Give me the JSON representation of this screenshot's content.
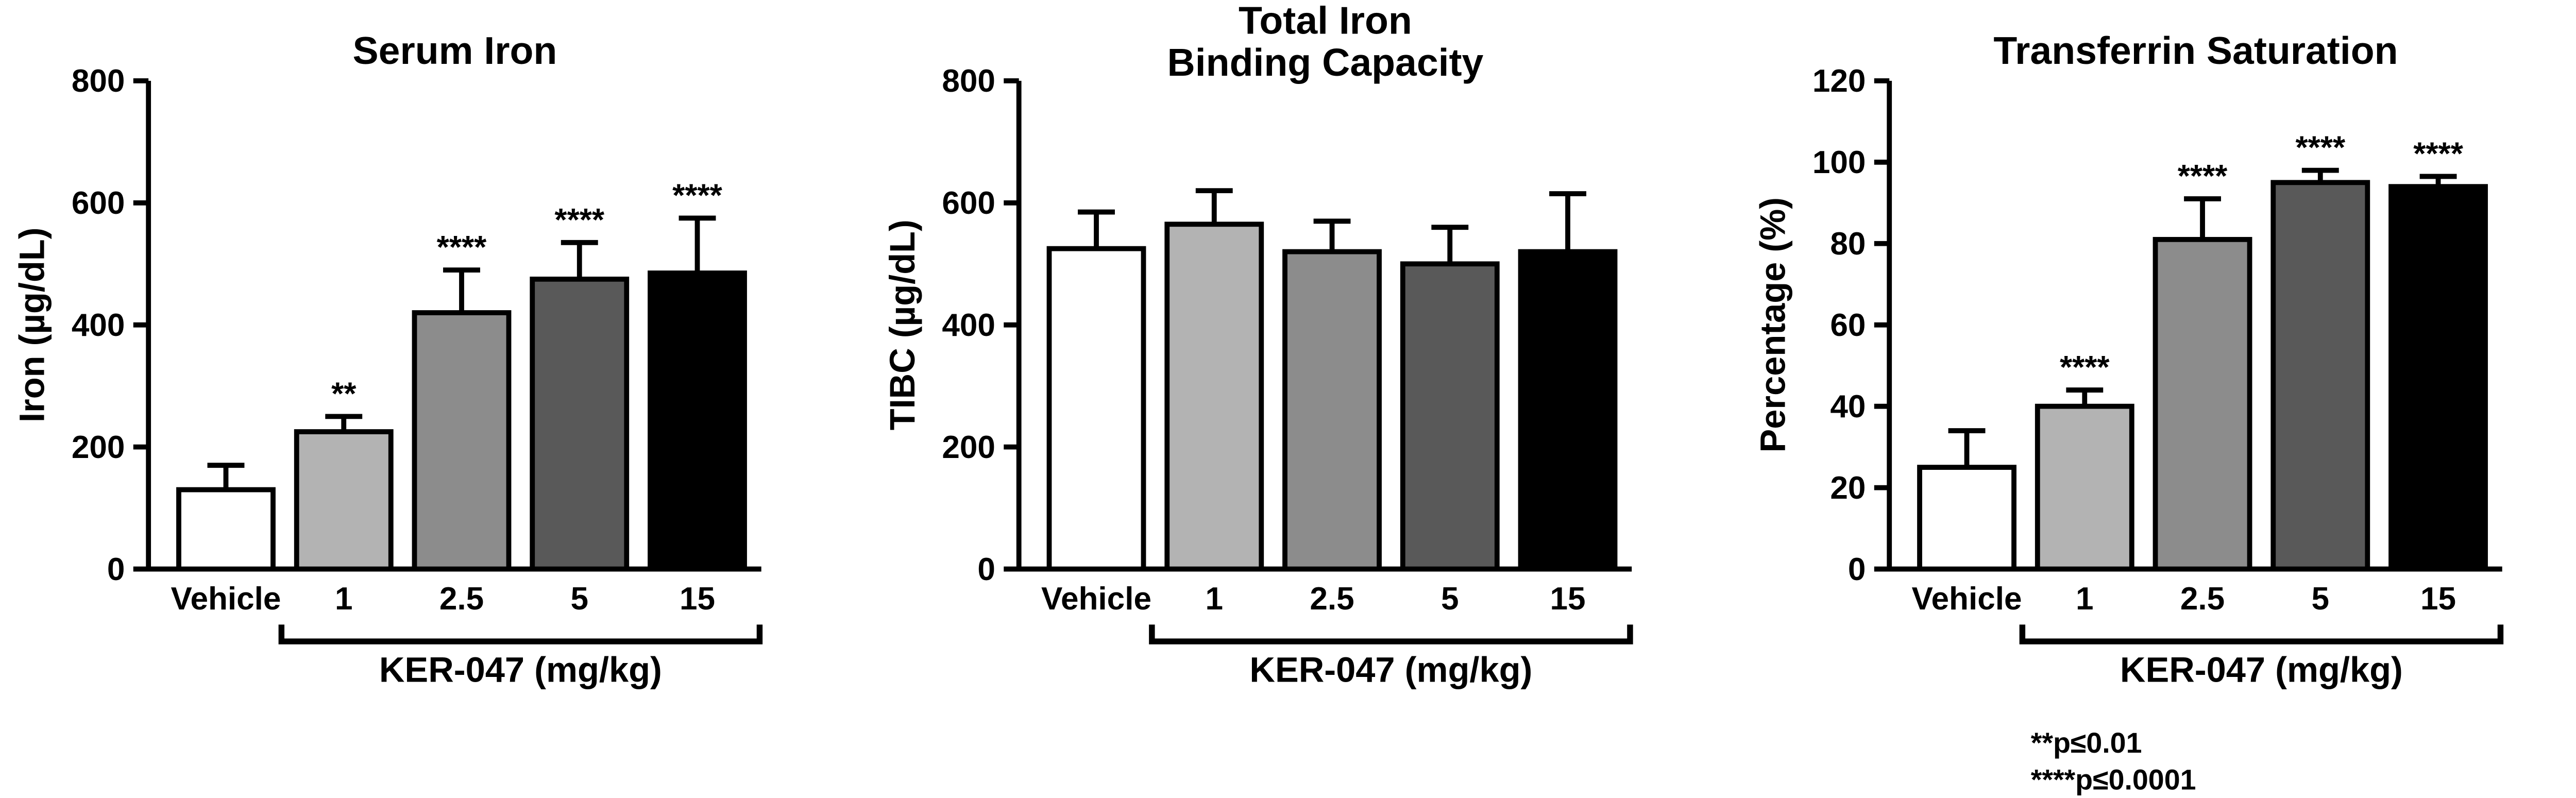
{
  "figure": {
    "background": "#ffffff"
  },
  "colors": {
    "bar_fills": [
      "#ffffff",
      "#b3b3b3",
      "#8c8c8c",
      "#595959",
      "#000000"
    ],
    "outline": "#000000",
    "text": "#000000"
  },
  "footnotes": [
    "**p≤0.01",
    "****p≤0.0001"
  ],
  "chart_data": [
    {
      "type": "bar",
      "id": "serum-iron",
      "title": "Serum Iron",
      "ylabel": "Iron (µg/dL)",
      "xlabel": "KER-047 (mg/kg)",
      "categories": [
        "Vehicle",
        "1",
        "2.5",
        "5",
        "15"
      ],
      "values": [
        130,
        225,
        420,
        475,
        485
      ],
      "errors": [
        40,
        25,
        70,
        60,
        90
      ],
      "significance": [
        "",
        "**",
        "****",
        "****",
        "****"
      ],
      "ylim": [
        0,
        800
      ],
      "yticks": [
        0,
        200,
        400,
        600,
        800
      ],
      "legend": "none",
      "grid": false
    },
    {
      "type": "bar",
      "id": "tibc",
      "title": "Total Iron\nBinding Capacity",
      "ylabel": "TIBC (µg/dL)",
      "xlabel": "KER-047 (mg/kg)",
      "categories": [
        "Vehicle",
        "1",
        "2.5",
        "5",
        "15"
      ],
      "values": [
        525,
        565,
        520,
        500,
        520
      ],
      "errors": [
        60,
        55,
        50,
        60,
        95
      ],
      "significance": [
        "",
        "",
        "",
        "",
        ""
      ],
      "ylim": [
        0,
        800
      ],
      "yticks": [
        0,
        200,
        400,
        600,
        800
      ],
      "legend": "none",
      "grid": false
    },
    {
      "type": "bar",
      "id": "transferrin-saturation",
      "title": "Transferrin Saturation",
      "ylabel": "Percentage (%)",
      "xlabel": "KER-047 (mg/kg)",
      "categories": [
        "Vehicle",
        "1",
        "2.5",
        "5",
        "15"
      ],
      "values": [
        25,
        40,
        81,
        95,
        94
      ],
      "errors": [
        9,
        4,
        10,
        3,
        2.5
      ],
      "significance": [
        "",
        "****",
        "****",
        "****",
        "****"
      ],
      "ylim": [
        0,
        120
      ],
      "yticks": [
        0,
        20,
        40,
        60,
        80,
        100,
        120
      ],
      "legend": "none",
      "grid": false
    }
  ]
}
